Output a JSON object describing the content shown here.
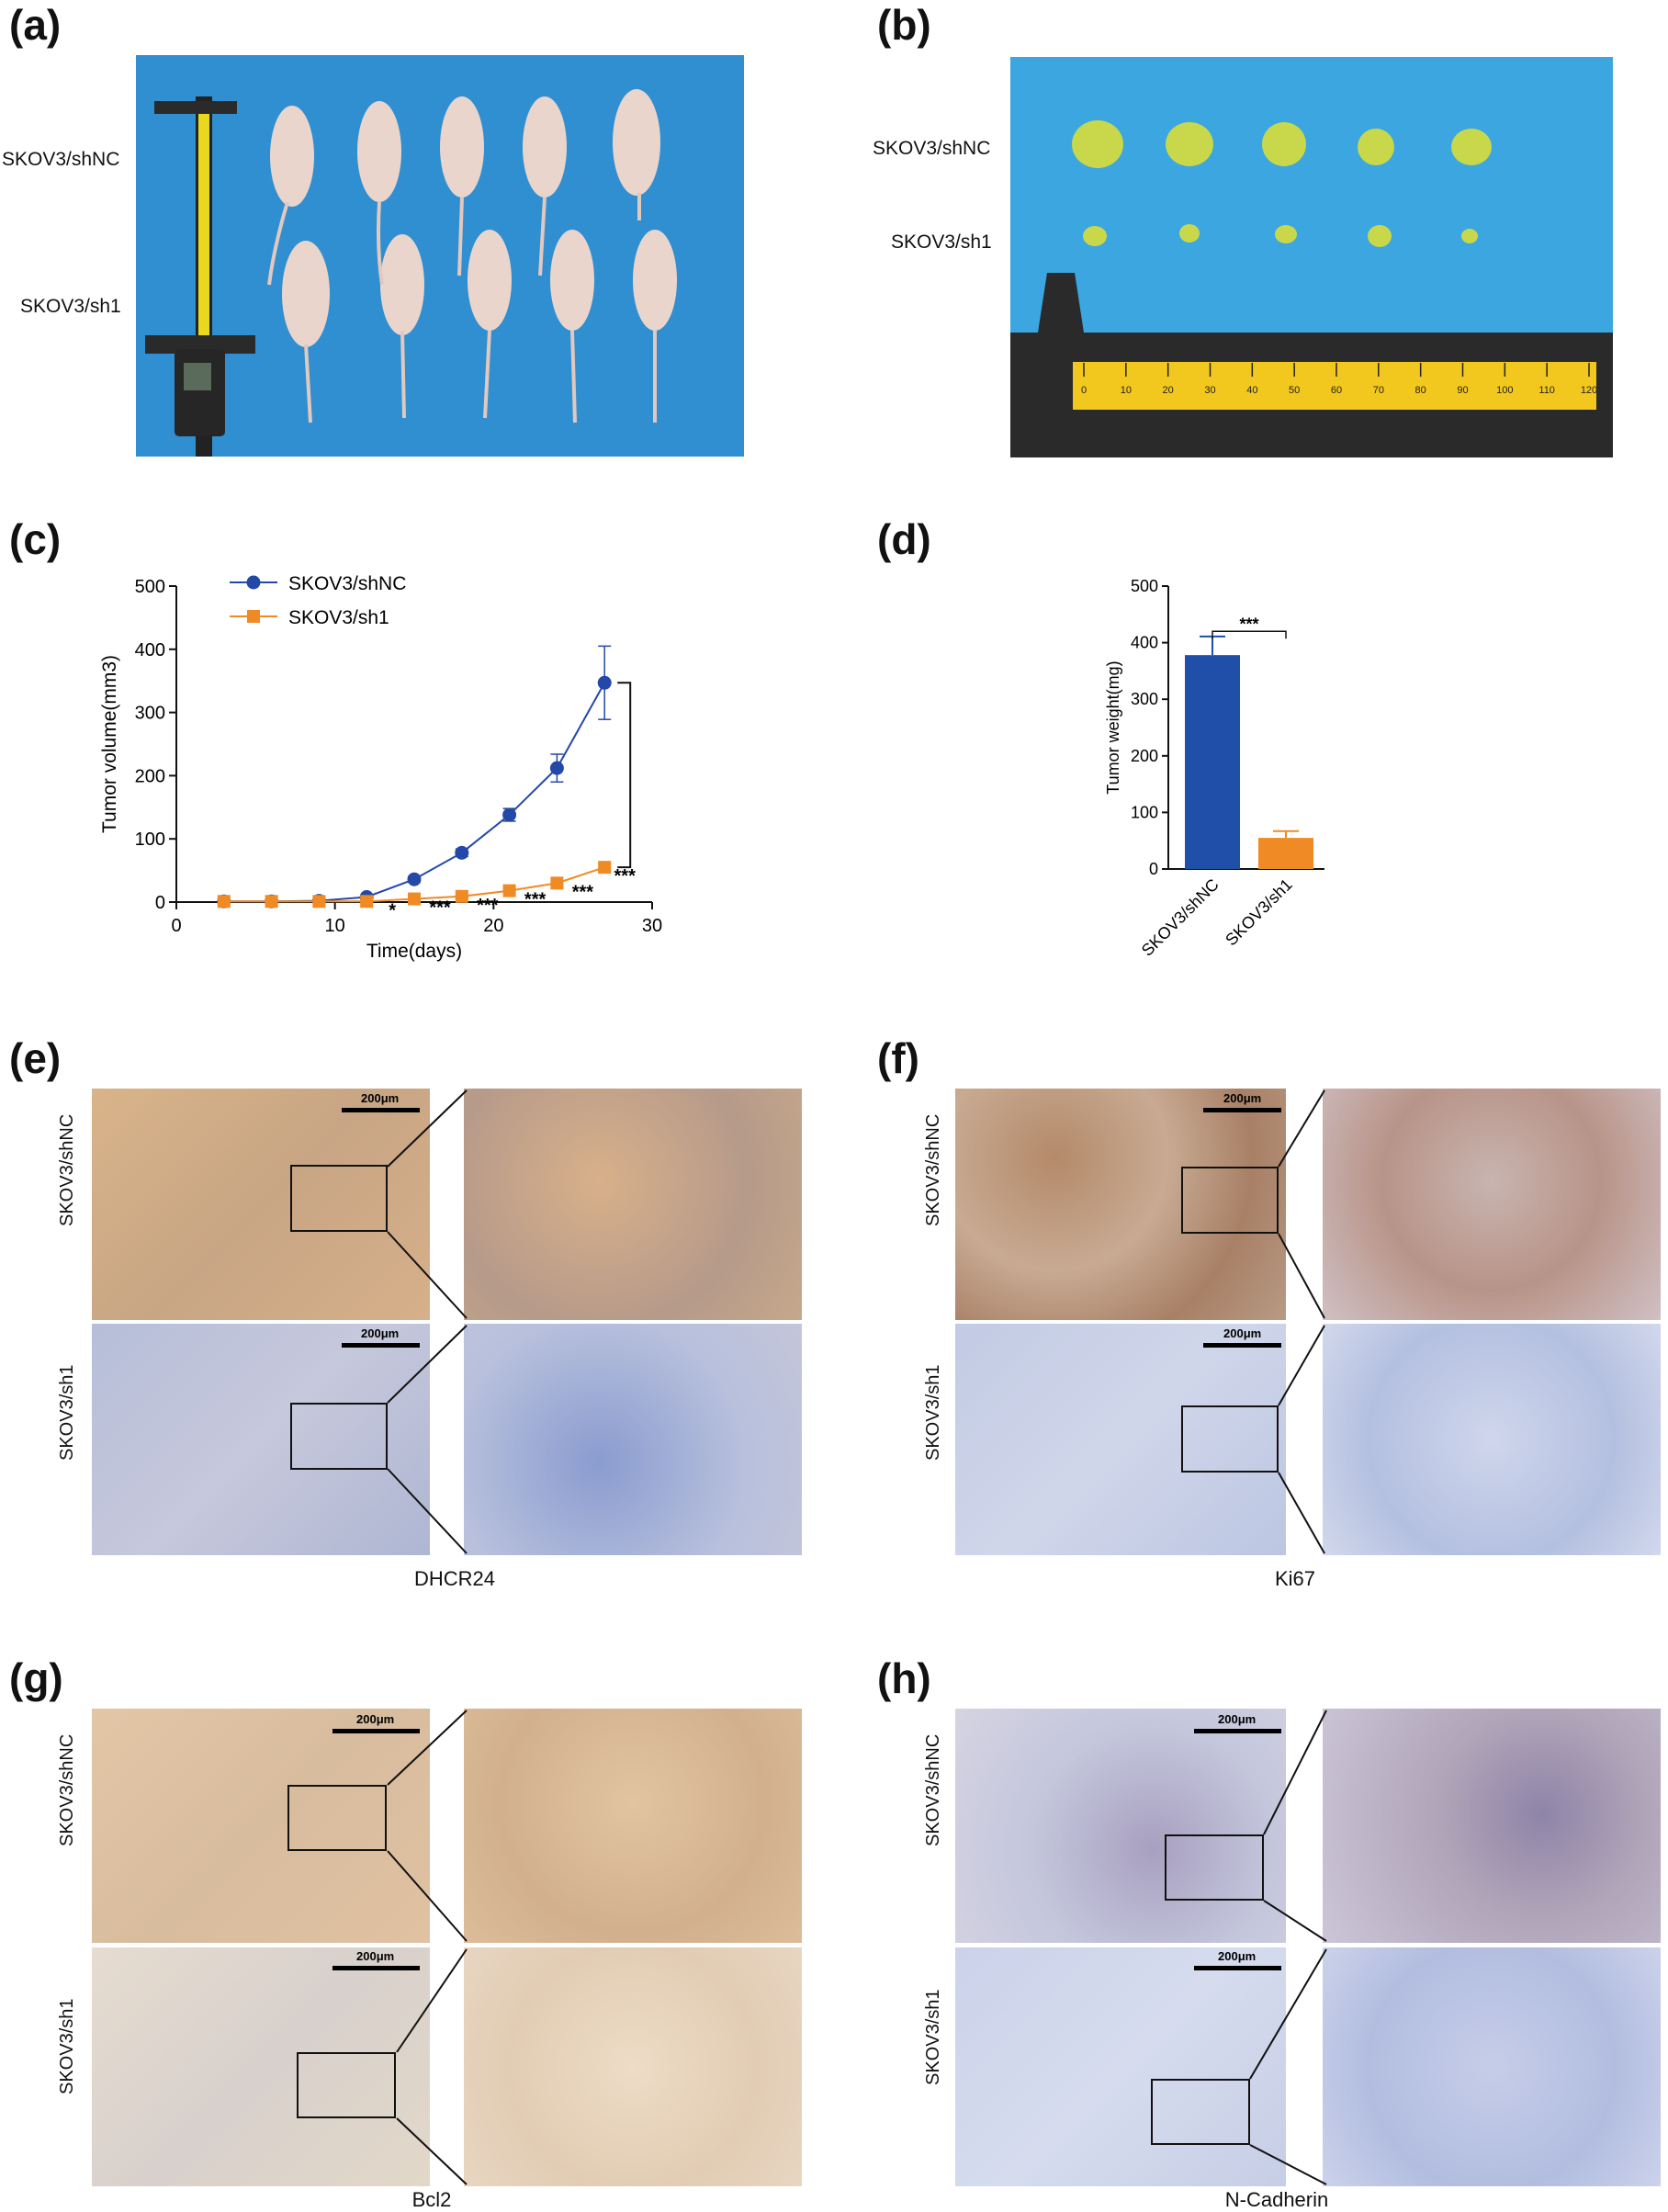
{
  "panels": {
    "a": {
      "letter": "(a)",
      "label_top": "SKOV3/shNC",
      "label_bottom": "SKOV3/sh1"
    },
    "b": {
      "letter": "(b)",
      "label_top": "SKOV3/shNC",
      "label_bottom": "SKOV3/sh1",
      "ruler_ticks": [
        "0",
        "10",
        "20",
        "30",
        "40",
        "50",
        "60",
        "70",
        "80",
        "90",
        "100",
        "110",
        "120"
      ]
    },
    "c": {
      "letter": "(c)"
    },
    "d": {
      "letter": "(d)"
    },
    "e": {
      "letter": "(e)",
      "label_top": "SKOV3/shNC",
      "label_bottom": "SKOV3/sh1",
      "marker": "DHCR24",
      "scale": "200μm"
    },
    "f": {
      "letter": "(f)",
      "label_top": "SKOV3/shNC",
      "label_bottom": "SKOV3/sh1",
      "marker": "Ki67",
      "scale": "200μm"
    },
    "g": {
      "letter": "(g)",
      "label_top": "SKOV3/shNC",
      "label_bottom": "SKOV3/sh1",
      "marker": "Bcl2",
      "scale": "200μm"
    },
    "h": {
      "letter": "(h)",
      "label_top": "SKOV3/shNC",
      "label_bottom": "SKOV3/sh1",
      "marker": "N-Cadherin",
      "scale": "200μm"
    }
  },
  "colors": {
    "blue": "#2448a8",
    "orange": "#f08a24",
    "drape": "#2f8fd0",
    "tumor": "#c8d84a"
  },
  "chart_data": [
    {
      "id": "c",
      "type": "line",
      "xlabel": "Time(days)",
      "ylabel": "Tumor volume(mm3)",
      "xlim": [
        0,
        30
      ],
      "ylim": [
        0,
        500
      ],
      "xticks": [
        0,
        10,
        20,
        30
      ],
      "yticks": [
        0,
        100,
        200,
        300,
        400,
        500
      ],
      "legend_position": "top-left",
      "series": [
        {
          "name": "SKOV3/shNC",
          "color": "#2448a8",
          "marker": "circle",
          "x": [
            3,
            6,
            9,
            12,
            15,
            18,
            21,
            24,
            27
          ],
          "y": [
            1,
            1,
            2,
            8,
            36,
            78,
            138,
            212,
            347
          ],
          "err": [
            0,
            0,
            0,
            2,
            4,
            6,
            10,
            22,
            58
          ]
        },
        {
          "name": "SKOV3/sh1",
          "color": "#f08a24",
          "marker": "square",
          "x": [
            3,
            6,
            9,
            12,
            15,
            18,
            21,
            24,
            27
          ],
          "y": [
            1,
            1,
            1,
            1,
            5,
            9,
            18,
            30,
            55
          ],
          "err": [
            0,
            0,
            0,
            0,
            1,
            2,
            3,
            4,
            6
          ]
        }
      ],
      "significance": [
        {
          "x": 12,
          "label": "*"
        },
        {
          "x": 15,
          "label": "***"
        },
        {
          "x": 18,
          "label": "***"
        },
        {
          "x": 21,
          "label": "***"
        },
        {
          "x": 24,
          "label": "***"
        },
        {
          "x": 27,
          "label": "***"
        }
      ]
    },
    {
      "id": "d",
      "type": "bar",
      "ylabel": "Tumor weight(mg)",
      "ylim": [
        0,
        500
      ],
      "yticks": [
        0,
        100,
        200,
        300,
        400,
        500
      ],
      "categories": [
        "SKOV3/shNC",
        "SKOV3/sh1"
      ],
      "values": [
        378,
        55
      ],
      "errors": [
        33,
        12
      ],
      "colors": [
        "#1f4fa8",
        "#f08a24"
      ],
      "significance": "***"
    }
  ]
}
